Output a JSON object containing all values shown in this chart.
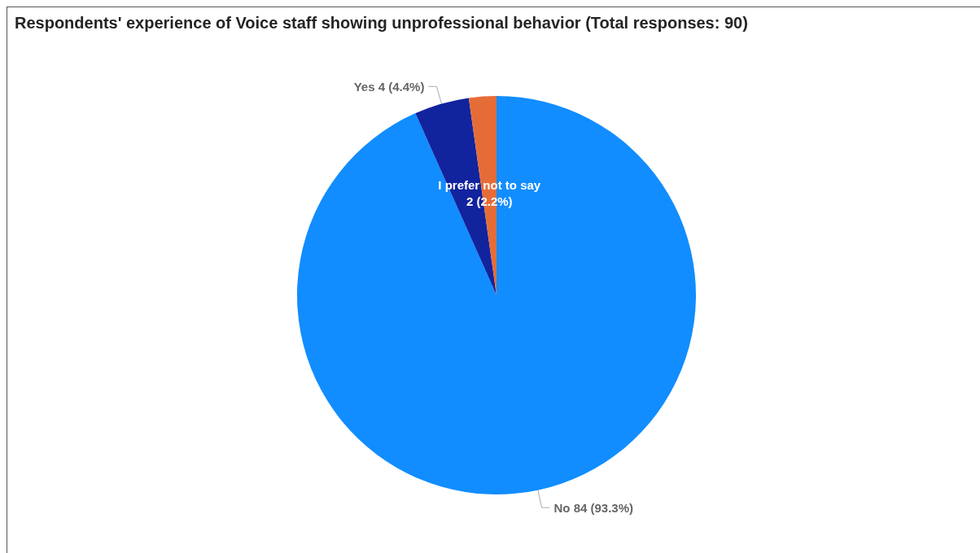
{
  "chart_data": {
    "type": "pie",
    "title": "Respondents' experience of Voice staff showing unprofessional behavior (Total responses: 90)",
    "categories": [
      "No",
      "Yes",
      "I prefer not to say"
    ],
    "values": [
      84,
      4,
      2
    ],
    "value_labels": [
      "84 (93.3%)",
      "4 (4.4%)",
      "2 (2.2%)"
    ],
    "colors": [
      "#118dff",
      "#12239e",
      "#e66c37"
    ],
    "legend": false
  }
}
